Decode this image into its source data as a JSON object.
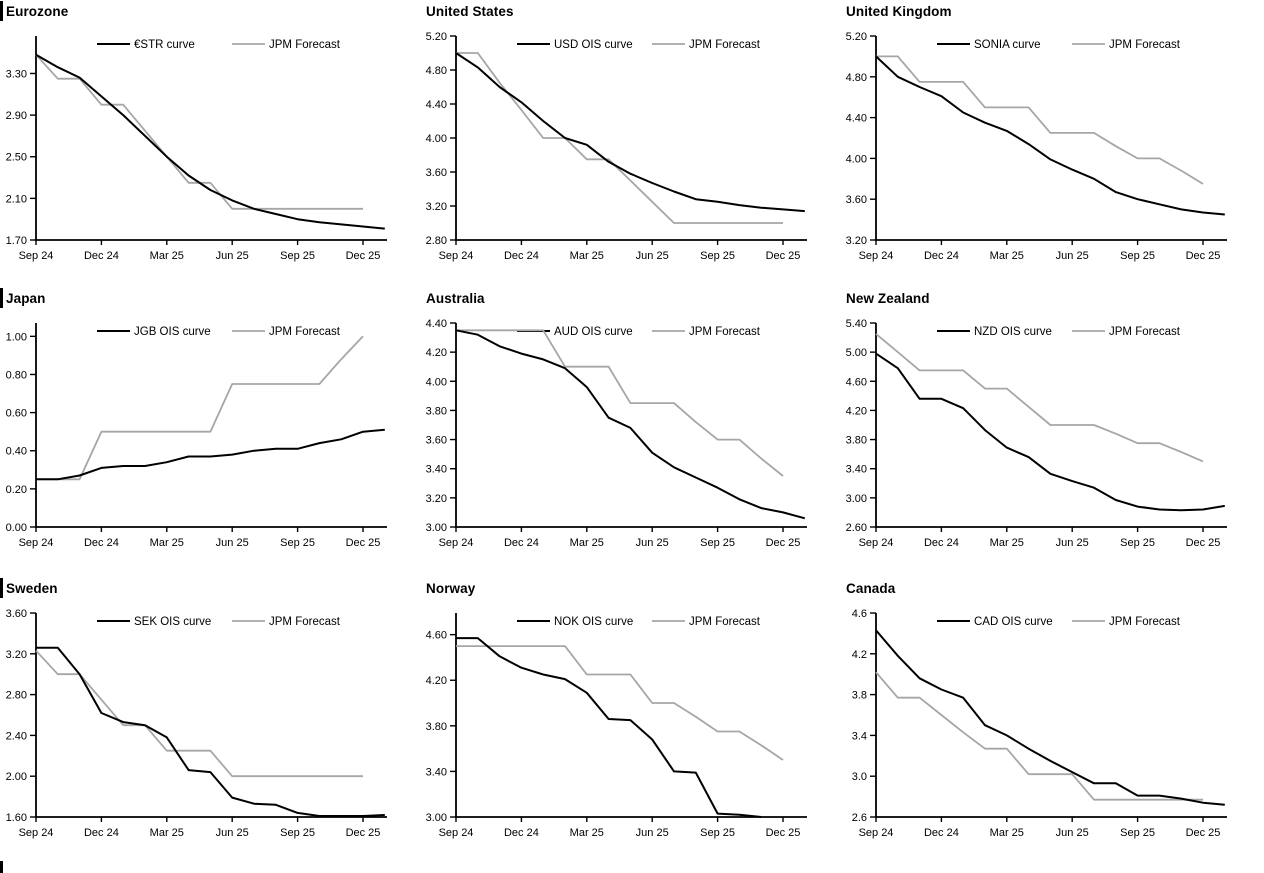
{
  "page": {
    "background": "#ffffff"
  },
  "colors": {
    "ois_line": "#000000",
    "forecast_line": "#a6a6a6",
    "axis": "#000000",
    "text": "#000000"
  },
  "x_axis": {
    "unit": "month",
    "tick_indices": [
      0,
      3,
      6,
      9,
      12,
      15
    ],
    "legend_position": "top",
    "grid": false
  },
  "chart_data": [
    {
      "type": "line",
      "title": "Eurozone",
      "x_tick_labels": [
        "Sep 24",
        "Dec 24",
        "Mar 25",
        "Jun 25",
        "Sep 25",
        "Dec 25"
      ],
      "ylim": [
        1.7,
        3.66
      ],
      "yticks": [
        "1.70",
        "2.10",
        "2.50",
        "2.90",
        "3.30"
      ],
      "series": [
        {
          "name": "€STR curve",
          "color": "#000000",
          "width": 2,
          "values": [
            3.48,
            3.36,
            3.26,
            3.08,
            2.9,
            2.7,
            2.5,
            2.32,
            2.18,
            2.08,
            2.0,
            1.95,
            1.9,
            1.87,
            1.85,
            1.83,
            1.81
          ]
        },
        {
          "name": "JPM Forecast",
          "color": "#a6a6a6",
          "width": 1.8,
          "values": [
            3.48,
            3.25,
            3.25,
            3.0,
            3.0,
            2.75,
            2.5,
            2.25,
            2.25,
            2.0,
            2.0,
            2.0,
            2.0,
            2.0,
            2.0,
            2.0
          ]
        }
      ]
    },
    {
      "type": "line",
      "title": "United States",
      "x_tick_labels": [
        "Sep 24",
        "Dec 24",
        "Mar 25",
        "Jun 25",
        "Sep 25",
        "Dec 25"
      ],
      "ylim": [
        2.8,
        5.2
      ],
      "yticks": [
        "2.80",
        "3.20",
        "3.60",
        "4.00",
        "4.40",
        "4.80",
        "5.20"
      ],
      "series": [
        {
          "name": "USD OIS curve",
          "color": "#000000",
          "width": 2,
          "values": [
            5.0,
            4.83,
            4.6,
            4.42,
            4.2,
            4.0,
            3.92,
            3.72,
            3.58,
            3.47,
            3.37,
            3.28,
            3.25,
            3.21,
            3.18,
            3.16,
            3.14
          ]
        },
        {
          "name": "JPM Forecast",
          "color": "#a6a6a6",
          "width": 1.8,
          "values": [
            5.0,
            5.0,
            4.65,
            4.33,
            4.0,
            4.0,
            3.75,
            3.75,
            3.5,
            3.25,
            3.0,
            3.0,
            3.0,
            3.0,
            3.0,
            3.0
          ]
        }
      ]
    },
    {
      "type": "line",
      "title": "United Kingdom",
      "x_tick_labels": [
        "Sep 24",
        "Dec 24",
        "Mar 25",
        "Jun 25",
        "Sep 25",
        "Dec 25"
      ],
      "ylim": [
        3.2,
        5.2
      ],
      "yticks": [
        "3.20",
        "3.60",
        "4.00",
        "4.40",
        "4.80",
        "5.20"
      ],
      "series": [
        {
          "name": "SONIA curve",
          "color": "#000000",
          "width": 2,
          "values": [
            5.0,
            4.8,
            4.7,
            4.61,
            4.45,
            4.35,
            4.27,
            4.14,
            3.99,
            3.89,
            3.8,
            3.67,
            3.6,
            3.55,
            3.5,
            3.47,
            3.45
          ]
        },
        {
          "name": "JPM Forecast",
          "color": "#a6a6a6",
          "width": 1.8,
          "values": [
            5.0,
            5.0,
            4.75,
            4.75,
            4.75,
            4.5,
            4.5,
            4.5,
            4.25,
            4.25,
            4.25,
            4.12,
            4.0,
            4.0,
            3.88,
            3.75
          ]
        }
      ]
    },
    {
      "type": "line",
      "title": "Japan",
      "x_tick_labels": [
        "Sep 24",
        "Dec 24",
        "Mar 25",
        "Jun 25",
        "Sep 25",
        "Dec 25"
      ],
      "ylim": [
        0.0,
        1.07
      ],
      "yticks": [
        "0.00",
        "0.20",
        "0.40",
        "0.60",
        "0.80",
        "1.00"
      ],
      "series": [
        {
          "name": "JGB OIS curve",
          "color": "#000000",
          "width": 2,
          "values": [
            0.25,
            0.25,
            0.27,
            0.31,
            0.32,
            0.32,
            0.34,
            0.37,
            0.37,
            0.38,
            0.4,
            0.41,
            0.41,
            0.44,
            0.46,
            0.5,
            0.51
          ]
        },
        {
          "name": "JPM Forecast",
          "color": "#a6a6a6",
          "width": 1.8,
          "values": [
            0.25,
            0.25,
            0.25,
            0.5,
            0.5,
            0.5,
            0.5,
            0.5,
            0.5,
            0.75,
            0.75,
            0.75,
            0.75,
            0.75,
            0.88,
            1.0
          ]
        }
      ]
    },
    {
      "type": "line",
      "title": "Australia",
      "x_tick_labels": [
        "Sep 24",
        "Dec 24",
        "Mar 25",
        "Jun 25",
        "Sep 25",
        "Dec 25"
      ],
      "ylim": [
        3.0,
        4.4
      ],
      "yticks": [
        "3.00",
        "3.20",
        "3.40",
        "3.60",
        "3.80",
        "4.00",
        "4.20",
        "4.40"
      ],
      "series": [
        {
          "name": "AUD OIS curve",
          "color": "#000000",
          "width": 2,
          "values": [
            4.35,
            4.32,
            4.24,
            4.19,
            4.15,
            4.09,
            3.96,
            3.75,
            3.68,
            3.51,
            3.41,
            3.34,
            3.27,
            3.19,
            3.13,
            3.1,
            3.06
          ]
        },
        {
          "name": "JPM Forecast",
          "color": "#a6a6a6",
          "width": 1.8,
          "values": [
            4.35,
            4.35,
            4.35,
            4.35,
            4.35,
            4.1,
            4.1,
            4.1,
            3.85,
            3.85,
            3.85,
            3.72,
            3.6,
            3.6,
            3.47,
            3.35
          ]
        }
      ]
    },
    {
      "type": "line",
      "title": "New Zealand",
      "x_tick_labels": [
        "Sep 24",
        "Dec 24",
        "Mar 25",
        "Jun 25",
        "Sep 25",
        "Dec 25"
      ],
      "ylim": [
        2.6,
        5.4
      ],
      "yticks": [
        "2.60",
        "3.00",
        "3.40",
        "3.80",
        "4.20",
        "4.60",
        "5.00",
        "5.40"
      ],
      "series": [
        {
          "name": "NZD OIS curve",
          "color": "#000000",
          "width": 2,
          "values": [
            4.98,
            4.78,
            4.36,
            4.36,
            4.23,
            3.93,
            3.69,
            3.56,
            3.33,
            3.23,
            3.14,
            2.97,
            2.88,
            2.84,
            2.83,
            2.84,
            2.89
          ]
        },
        {
          "name": "JPM Forecast",
          "color": "#a6a6a6",
          "width": 1.8,
          "values": [
            5.25,
            5.0,
            4.75,
            4.75,
            4.75,
            4.5,
            4.5,
            4.25,
            4.0,
            4.0,
            4.0,
            3.88,
            3.75,
            3.75,
            3.63,
            3.5
          ]
        }
      ]
    },
    {
      "type": "line",
      "title": "Sweden",
      "x_tick_labels": [
        "Sep 24",
        "Dec 24",
        "Mar 25",
        "Jun 25",
        "Sep 25",
        "Dec 25"
      ],
      "ylim": [
        1.6,
        3.6
      ],
      "yticks": [
        "1.60",
        "2.00",
        "2.40",
        "2.80",
        "3.20",
        "3.60"
      ],
      "series": [
        {
          "name": "SEK OIS curve",
          "color": "#000000",
          "width": 2,
          "values": [
            3.26,
            3.26,
            3.0,
            2.62,
            2.53,
            2.5,
            2.38,
            2.06,
            2.04,
            1.79,
            1.73,
            1.72,
            1.64,
            1.61,
            1.61,
            1.61,
            1.62
          ]
        },
        {
          "name": "JPM Forecast",
          "color": "#a6a6a6",
          "width": 1.8,
          "values": [
            3.23,
            3.0,
            3.0,
            2.75,
            2.5,
            2.5,
            2.25,
            2.25,
            2.25,
            2.0,
            2.0,
            2.0,
            2.0,
            2.0,
            2.0,
            2.0
          ]
        }
      ]
    },
    {
      "type": "line",
      "title": "Norway",
      "x_tick_labels": [
        "Sep 24",
        "Dec 24",
        "Mar 25",
        "Jun 25",
        "Sep 25",
        "Dec 25"
      ],
      "ylim": [
        3.0,
        4.79
      ],
      "yticks": [
        "3.00",
        "3.40",
        "3.80",
        "4.20",
        "4.60"
      ],
      "series": [
        {
          "name": "NOK OIS curve",
          "color": "#000000",
          "width": 2,
          "values": [
            4.57,
            4.57,
            4.41,
            4.31,
            4.25,
            4.21,
            4.09,
            3.86,
            3.85,
            3.68,
            3.4,
            3.39,
            3.03,
            3.02,
            3.0
          ]
        },
        {
          "name": "JPM Forecast",
          "color": "#a6a6a6",
          "width": 1.8,
          "values": [
            4.5,
            4.5,
            4.5,
            4.5,
            4.5,
            4.5,
            4.25,
            4.25,
            4.25,
            4.0,
            4.0,
            3.88,
            3.75,
            3.75,
            3.63,
            3.5
          ]
        }
      ]
    },
    {
      "type": "line",
      "title": "Canada",
      "x_tick_labels": [
        "Sep 24",
        "Dec 24",
        "Mar 25",
        "Jun 25",
        "Sep 25",
        "Dec 25"
      ],
      "ylim": [
        2.6,
        4.6
      ],
      "yticks": [
        "2.6",
        "3.0",
        "3.4",
        "3.8",
        "4.2",
        "4.6"
      ],
      "series": [
        {
          "name": "CAD OIS curve",
          "color": "#000000",
          "width": 2,
          "values": [
            4.43,
            4.18,
            3.96,
            3.85,
            3.77,
            3.5,
            3.4,
            3.27,
            3.15,
            3.04,
            2.93,
            2.93,
            2.81,
            2.81,
            2.78,
            2.74,
            2.72
          ]
        },
        {
          "name": "JPM Forecast",
          "color": "#a6a6a6",
          "width": 1.8,
          "values": [
            4.02,
            3.77,
            3.77,
            3.6,
            3.43,
            3.27,
            3.27,
            3.02,
            3.02,
            3.02,
            2.77,
            2.77,
            2.77,
            2.77,
            2.77,
            2.77
          ]
        }
      ]
    }
  ]
}
